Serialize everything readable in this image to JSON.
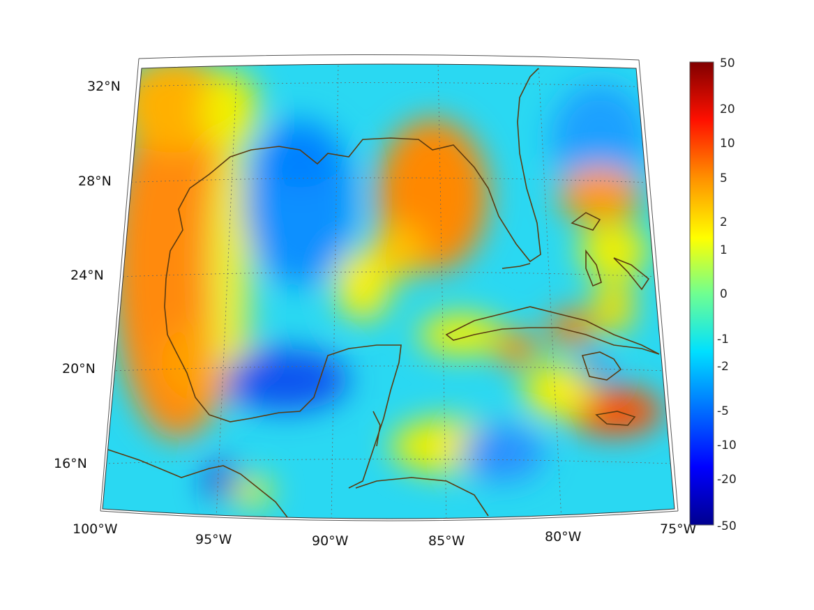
{
  "map": {
    "region": "Gulf of Mexico and Caribbean",
    "projection": "conic",
    "longitude_labels": [
      "100°W",
      "95°W",
      "90°W",
      "85°W",
      "80°W",
      "75°W"
    ],
    "latitude_labels": [
      "32°N",
      "28°N",
      "24°N",
      "20°N",
      "16°N"
    ],
    "grid": true,
    "coastline_color": "#5a3a10"
  },
  "colorbar": {
    "labels": [
      "50",
      "20",
      "10",
      "5",
      "2",
      "1",
      "0",
      "-1",
      "-2",
      "-5",
      "-10",
      "-20",
      "-50"
    ],
    "colormap": "jet",
    "colors": [
      "#00008f",
      "#0000ff",
      "#0080ff",
      "#00ffff",
      "#80ff80",
      "#ffff00",
      "#ff8000",
      "#ff0000",
      "#800000"
    ]
  }
}
